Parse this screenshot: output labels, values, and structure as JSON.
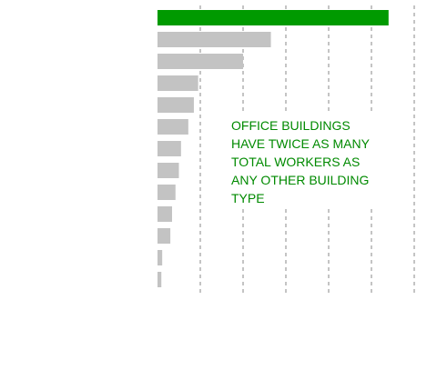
{
  "chart_data": {
    "type": "bar",
    "orientation": "horizontal",
    "values": [
      54,
      26.5,
      20,
      9.5,
      8.5,
      7.2,
      5.5,
      5,
      4.2,
      3.4,
      3,
      1.1,
      0.9
    ],
    "xlim": [
      0,
      60
    ],
    "grid": {
      "x_major": true,
      "dashed": true,
      "step": 10
    },
    "highlight_index": 0,
    "title": "",
    "xlabel": "",
    "ylabel": "",
    "annotation": "OFFICE BUILDINGS\nHAVE TWICE AS MANY\nTOTAL WORKERS AS\nANY OTHER BUILDING\nTYPE"
  },
  "colors": {
    "highlight": "#009a00",
    "bar": "#c3c3c3",
    "grid": "#8a8a8a",
    "annotation_text": "#008a00",
    "background": "#ffffff"
  }
}
